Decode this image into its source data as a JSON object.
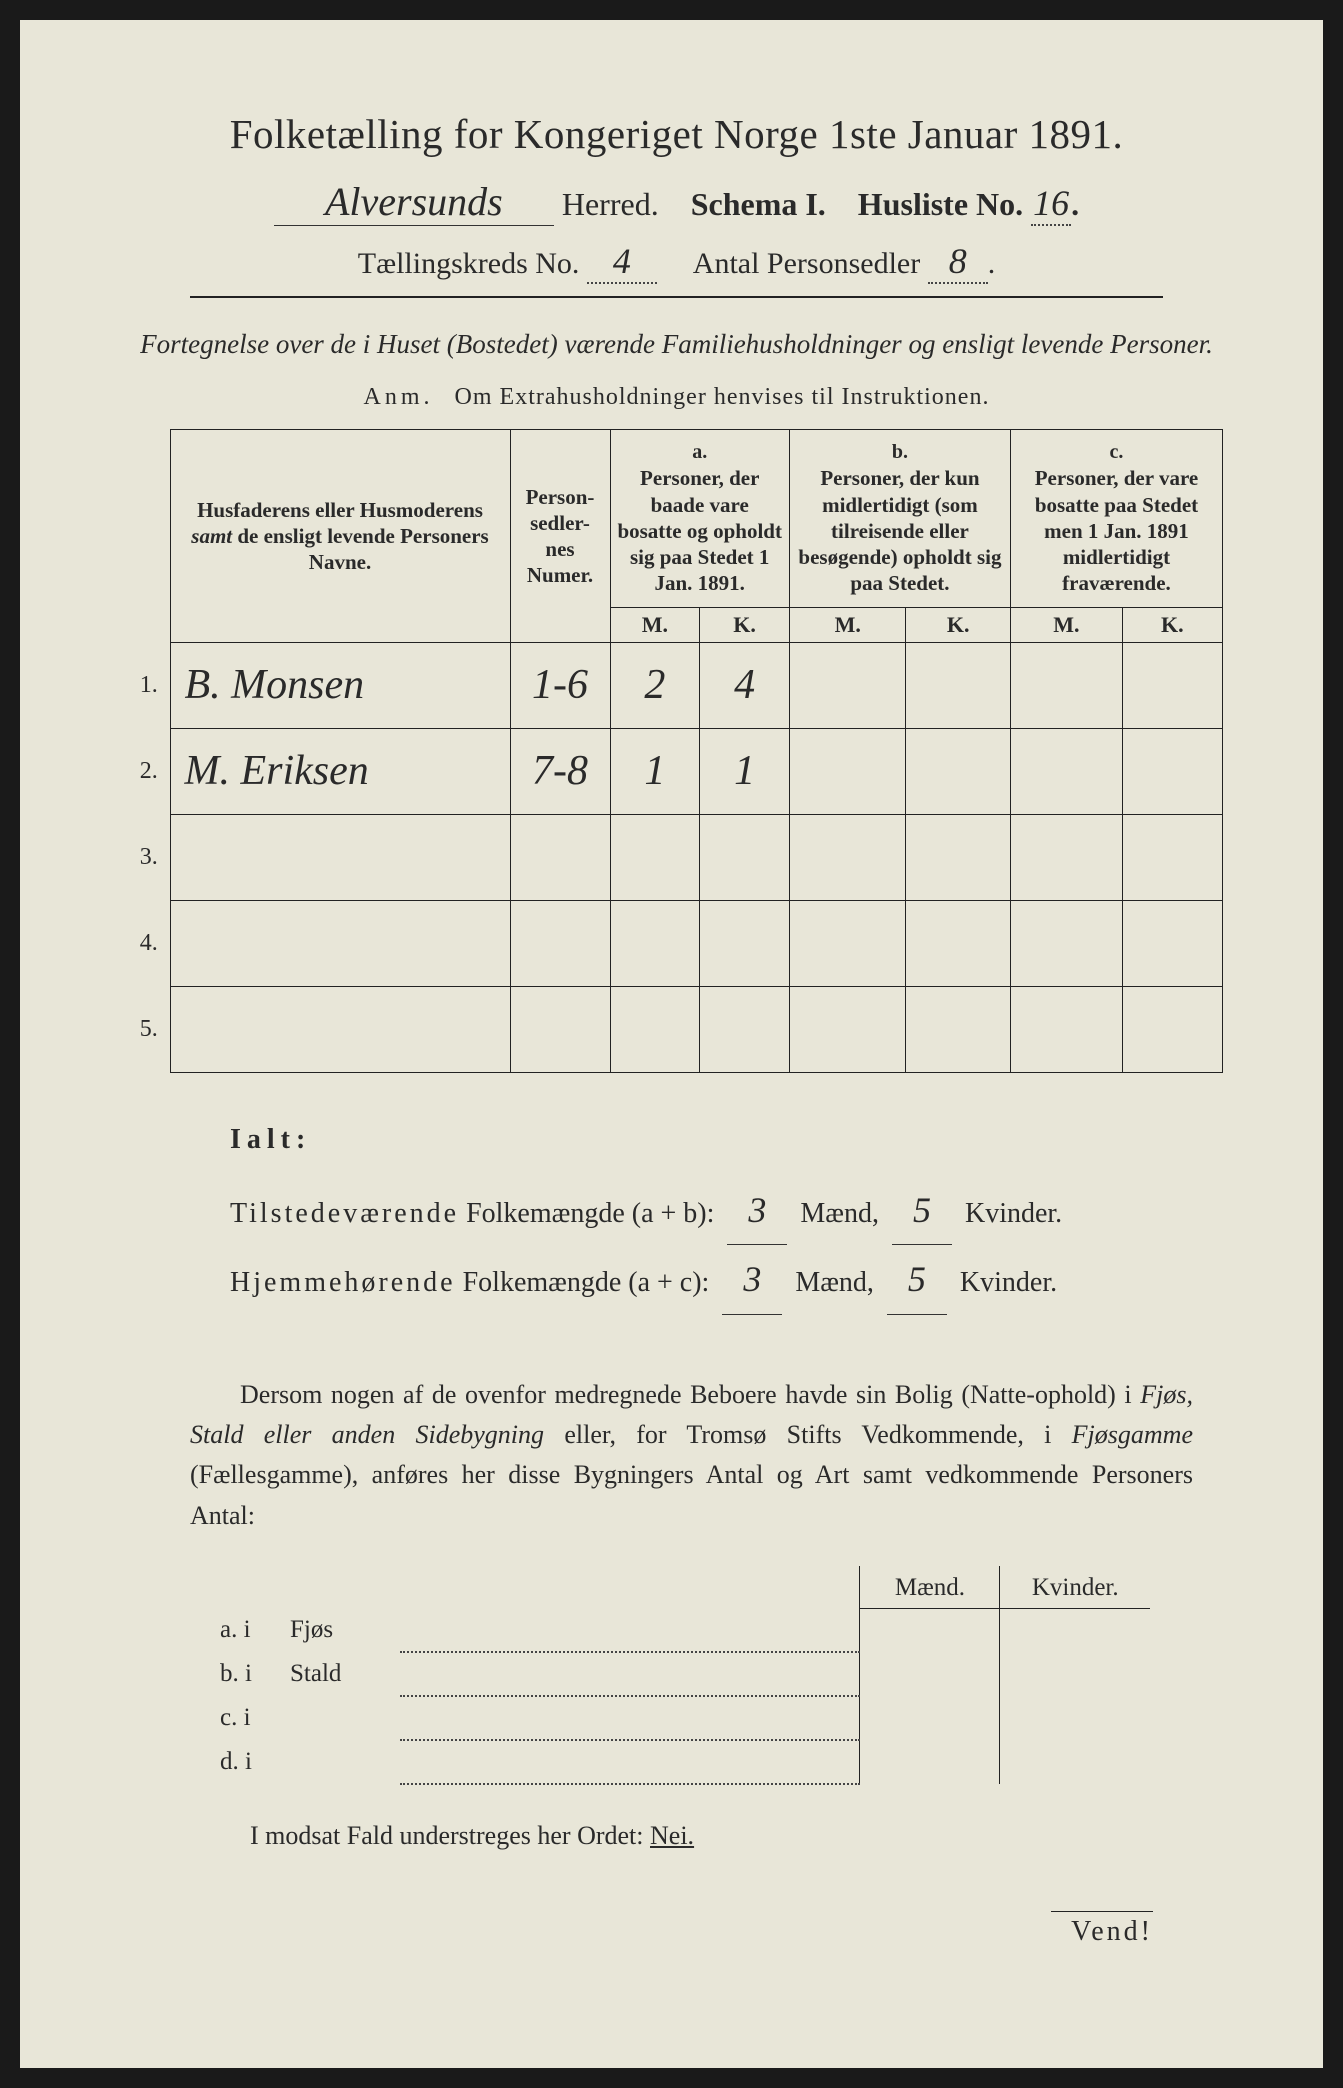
{
  "colors": {
    "paper": "#e8e6d8",
    "ink": "#2a2a2a",
    "border": "#222222",
    "background": "#1a1a1a"
  },
  "typography": {
    "title_fontsize": 41,
    "body_fontsize": 26,
    "table_header_fontsize": 21,
    "handwritten_family": "Brush Script MT"
  },
  "header": {
    "title": "Folketælling for Kongeriget Norge 1ste Januar 1891.",
    "herred_hand": "Alversunds",
    "herred_label": "Herred.",
    "schema_label": "Schema I.",
    "husliste_label": "Husliste No.",
    "husliste_no": "16",
    "kreds_label": "Tællingskreds No.",
    "kreds_no": "4",
    "antal_label": "Antal Personsedler",
    "antal_no": "8"
  },
  "subtitle": "Fortegnelse over de i Huset (Bostedet) værende Familiehusholdninger og ensligt levende Personer.",
  "anm": {
    "label": "Anm.",
    "text": "Om Extrahusholdninger henvises til Instruktionen."
  },
  "table": {
    "col_names": "Husfaderens eller Husmoderens samt de ensligt levende Personers Navne.",
    "col_numer": "Person-sedler-nes Numer.",
    "col_a_label": "a.",
    "col_a": "Personer, der baade vare bosatte og opholdt sig paa Stedet 1 Jan. 1891.",
    "col_b_label": "b.",
    "col_b": "Personer, der kun midlertidigt (som tilreisende eller besøgende) opholdt sig paa Stedet.",
    "col_c_label": "c.",
    "col_c": "Personer, der vare bosatte paa Stedet men 1 Jan. 1891 midlertidigt fraværende.",
    "m": "M.",
    "k": "K.",
    "rows": [
      {
        "n": "1.",
        "name": "B. Monsen",
        "numer": "1-6",
        "a_m": "2",
        "a_k": "4",
        "b_m": "",
        "b_k": "",
        "c_m": "",
        "c_k": ""
      },
      {
        "n": "2.",
        "name": "M. Eriksen",
        "numer": "7-8",
        "a_m": "1",
        "a_k": "1",
        "b_m": "",
        "b_k": "",
        "c_m": "",
        "c_k": ""
      },
      {
        "n": "3.",
        "name": "",
        "numer": "",
        "a_m": "",
        "a_k": "",
        "b_m": "",
        "b_k": "",
        "c_m": "",
        "c_k": ""
      },
      {
        "n": "4.",
        "name": "",
        "numer": "",
        "a_m": "",
        "a_k": "",
        "b_m": "",
        "b_k": "",
        "c_m": "",
        "c_k": ""
      },
      {
        "n": "5.",
        "name": "",
        "numer": "",
        "a_m": "",
        "a_k": "",
        "b_m": "",
        "b_k": "",
        "c_m": "",
        "c_k": ""
      }
    ]
  },
  "ialt": {
    "label": "Ialt:",
    "line1_a": "Tilstedeværende",
    "line1_b": "Folkemængde (a + b):",
    "line1_m": "3",
    "line1_k": "5",
    "line2_a": "Hjemmehørende",
    "line2_b": "Folkemængde (a + c):",
    "line2_m": "3",
    "line2_k": "5",
    "maend": "Mænd,",
    "kvinder": "Kvinder."
  },
  "paragraph": {
    "p1": "Dersom nogen af de ovenfor medregnede Beboere havde sin Bolig (Natte-ophold) i ",
    "p2": "Fjøs, Stald eller anden Sidebygning",
    "p3": " eller, for Tromsø Stifts Vedkommende, i ",
    "p4": "Fjøsgamme",
    "p5": " (Fællesgamme), anføres her disse Bygningers Antal og Art samt vedkommende Personers Antal:"
  },
  "bottom": {
    "maend": "Mænd.",
    "kvinder": "Kvinder.",
    "rows": [
      {
        "label": "a.  i",
        "type": "Fjøs"
      },
      {
        "label": "b.  i",
        "type": "Stald"
      },
      {
        "label": "c.  i",
        "type": ""
      },
      {
        "label": "d.  i",
        "type": ""
      }
    ]
  },
  "nei": "I modsat Fald understreges her Ordet:",
  "nei_word": "Nei.",
  "vend": "Vend!"
}
